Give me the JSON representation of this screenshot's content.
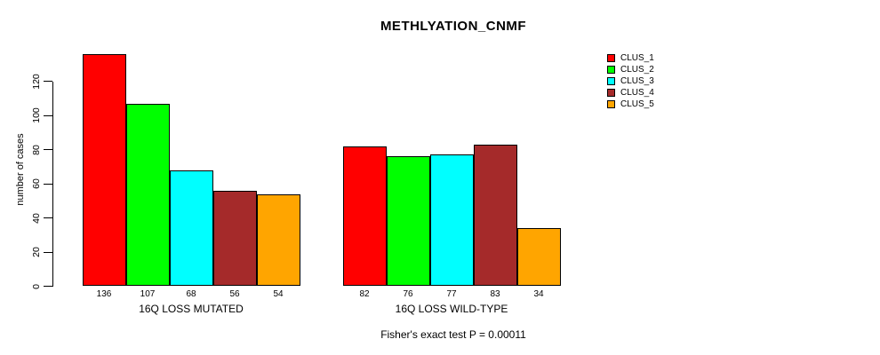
{
  "chart_data": {
    "type": "bar",
    "title": "METHLYATION_CNMF",
    "ylabel": "number of cases",
    "footnote": "Fisher's exact test P = 0.00011",
    "yticks": [
      0,
      20,
      40,
      60,
      80,
      100,
      120
    ],
    "ylim": [
      0,
      140
    ],
    "grid": false,
    "legend_position": "top-right",
    "categories": [
      "16Q LOSS MUTATED",
      "16Q LOSS WILD-TYPE"
    ],
    "series": [
      {
        "name": "CLUS_1",
        "color": "#FF0000",
        "values": [
          136,
          82
        ]
      },
      {
        "name": "CLUS_2",
        "color": "#00FF00",
        "values": [
          107,
          76
        ]
      },
      {
        "name": "CLUS_3",
        "color": "#00FFFF",
        "values": [
          68,
          77
        ]
      },
      {
        "name": "CLUS_4",
        "color": "#A52A2A",
        "values": [
          56,
          83
        ]
      },
      {
        "name": "CLUS_5",
        "color": "#FFA500",
        "values": [
          54,
          34
        ]
      }
    ],
    "value_labels_shown": true
  }
}
